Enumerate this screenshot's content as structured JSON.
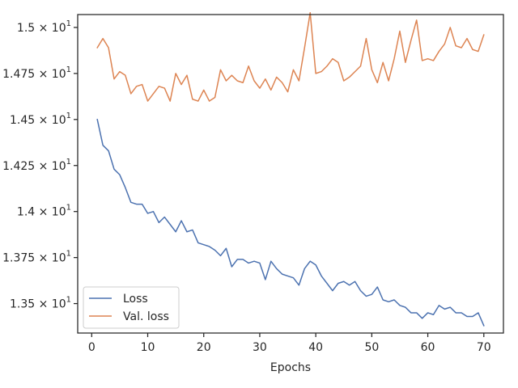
{
  "chart_data": {
    "type": "line",
    "title": "",
    "xlabel": "Epochs",
    "ylabel": "",
    "xlim": [
      -2.5,
      73.5
    ],
    "ylim": [
      13.34,
      15.07
    ],
    "grid": false,
    "legend_position": "lower-left",
    "x_ticks": [
      0,
      10,
      20,
      30,
      40,
      50,
      60,
      70
    ],
    "x_tick_labels": [
      "0",
      "10",
      "20",
      "30",
      "40",
      "50",
      "60",
      "70"
    ],
    "y_ticks": [
      13.5,
      13.75,
      14.0,
      14.25,
      14.5,
      14.75,
      15.0
    ],
    "y_tick_labels": [
      {
        "mant": "1.35",
        "exp": "1"
      },
      {
        "mant": "1.375",
        "exp": "1"
      },
      {
        "mant": "1.4",
        "exp": "1"
      },
      {
        "mant": "1.425",
        "exp": "1"
      },
      {
        "mant": "1.45",
        "exp": "1"
      },
      {
        "mant": "1.475",
        "exp": "1"
      },
      {
        "mant": "1.5",
        "exp": "1"
      }
    ],
    "y_tick_base": "× 10",
    "x": [
      1,
      2,
      3,
      4,
      5,
      6,
      7,
      8,
      9,
      10,
      11,
      12,
      13,
      14,
      15,
      16,
      17,
      18,
      19,
      20,
      21,
      22,
      23,
      24,
      25,
      26,
      27,
      28,
      29,
      30,
      31,
      32,
      33,
      34,
      35,
      36,
      37,
      38,
      39,
      40,
      41,
      42,
      43,
      44,
      45,
      46,
      47,
      48,
      49,
      50,
      51,
      52,
      53,
      54,
      55,
      56,
      57,
      58,
      59,
      60,
      61,
      62,
      63,
      64,
      65,
      66,
      67,
      68,
      69,
      70
    ],
    "series": [
      {
        "name": "Loss",
        "color": "#4c72b0",
        "values": [
          14.5,
          14.36,
          14.33,
          14.23,
          14.2,
          14.13,
          14.05,
          14.04,
          14.04,
          13.99,
          14.0,
          13.94,
          13.97,
          13.93,
          13.89,
          13.95,
          13.89,
          13.9,
          13.83,
          13.82,
          13.81,
          13.79,
          13.76,
          13.8,
          13.7,
          13.74,
          13.74,
          13.72,
          13.73,
          13.72,
          13.63,
          13.73,
          13.69,
          13.66,
          13.65,
          13.64,
          13.6,
          13.69,
          13.73,
          13.71,
          13.65,
          13.61,
          13.57,
          13.61,
          13.62,
          13.6,
          13.62,
          13.57,
          13.54,
          13.55,
          13.59,
          13.52,
          13.51,
          13.52,
          13.49,
          13.48,
          13.45,
          13.45,
          13.42,
          13.45,
          13.44,
          13.49,
          13.47,
          13.48,
          13.45,
          13.45,
          13.43,
          13.43,
          13.45,
          13.38
        ]
      },
      {
        "name": "Val. loss",
        "color": "#dd8452",
        "values": [
          14.89,
          14.94,
          14.89,
          14.72,
          14.76,
          14.74,
          14.64,
          14.68,
          14.69,
          14.6,
          14.64,
          14.68,
          14.67,
          14.6,
          14.75,
          14.69,
          14.74,
          14.61,
          14.6,
          14.66,
          14.6,
          14.62,
          14.77,
          14.71,
          14.74,
          14.71,
          14.7,
          14.79,
          14.71,
          14.67,
          14.72,
          14.66,
          14.73,
          14.7,
          14.65,
          14.77,
          14.71,
          14.89,
          15.08,
          14.75,
          14.76,
          14.79,
          14.83,
          14.81,
          14.71,
          14.73,
          14.76,
          14.79,
          14.94,
          14.77,
          14.7,
          14.81,
          14.71,
          14.83,
          14.98,
          14.81,
          14.93,
          15.04,
          14.82,
          14.83,
          14.82,
          14.87,
          14.91,
          15.0,
          14.9,
          14.89,
          14.94,
          14.88,
          14.87,
          14.96
        ]
      }
    ]
  }
}
